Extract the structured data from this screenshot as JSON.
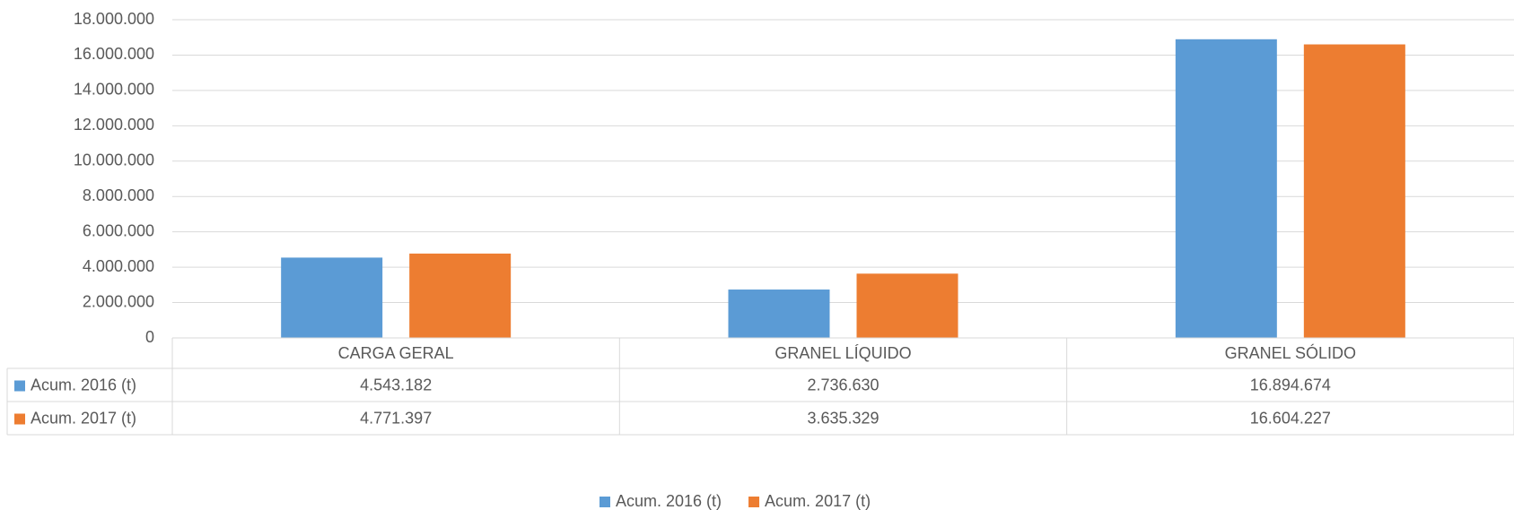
{
  "chart_data": {
    "type": "bar",
    "categories": [
      "CARGA GERAL",
      "GRANEL LÍQUIDO",
      "GRANEL SÓLIDO"
    ],
    "series": [
      {
        "name": "Acum. 2016 (t)",
        "color": "#5b9bd5",
        "values": [
          4543182,
          2736630,
          16894674
        ],
        "value_labels": [
          "4.543.182",
          "2.736.630",
          "16.894.674"
        ]
      },
      {
        "name": "Acum. 2017 (t)",
        "color": "#ed7d31",
        "values": [
          4771397,
          3635329,
          16604227
        ],
        "value_labels": [
          "4.771.397",
          "3.635.329",
          "16.604.227"
        ]
      }
    ],
    "ylim": [
      0,
      18000000
    ],
    "yticks": [
      0,
      {
        "value": 2000000,
        "label": "2.000.000"
      },
      {
        "value": 4000000,
        "label": "4.000.000"
      },
      {
        "value": 6000000,
        "label": "6.000.000"
      },
      {
        "value": 8000000,
        "label": "8.000.000"
      },
      {
        "value": 10000000,
        "label": "10.000.000"
      },
      {
        "value": 12000000,
        "label": "12.000.000"
      },
      {
        "value": 14000000,
        "label": "14.000.000"
      },
      {
        "value": 16000000,
        "label": "16.000.000"
      },
      {
        "value": 18000000,
        "label": "18.000.000"
      }
    ],
    "grid": true,
    "legend": "bottom",
    "data_table": true
  }
}
